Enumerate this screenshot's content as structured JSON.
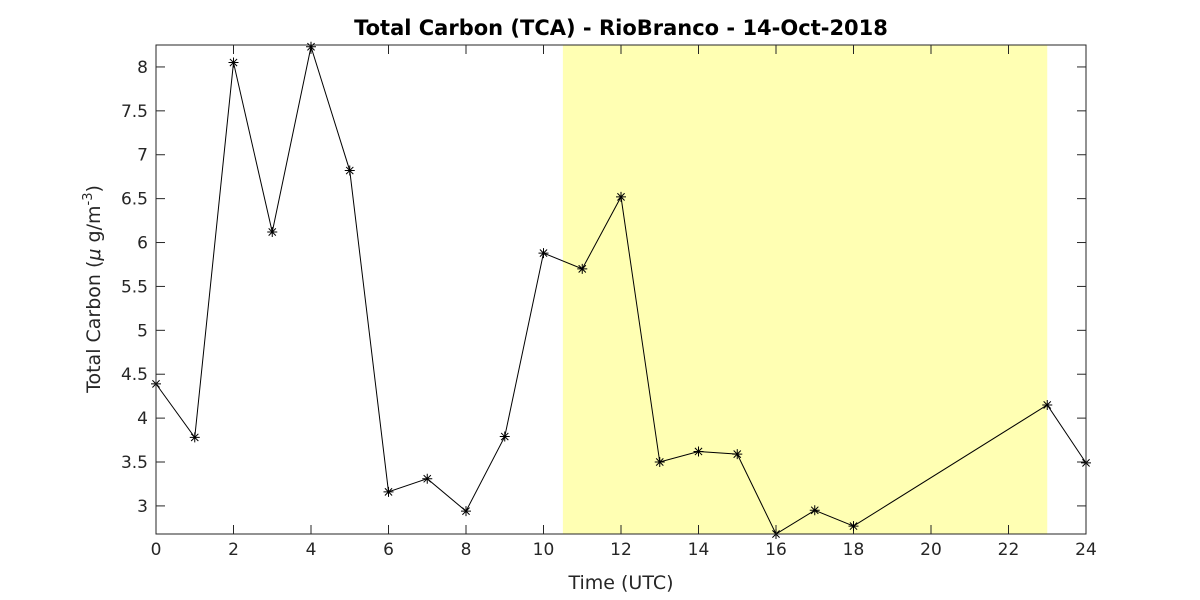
{
  "chart_data": {
    "type": "line",
    "title": "Total Carbon (TCA) - RioBranco - 14-Oct-2018",
    "xlabel": "Time (UTC)",
    "ylabel_prefix": "Total Carbon (",
    "ylabel_mu": "μ",
    "ylabel_unit": " g/m",
    "ylabel_exp": "-3",
    "ylabel_suffix": ")",
    "xlim": [
      0,
      24
    ],
    "ylim": [
      2.68,
      8.25
    ],
    "xticks": [
      0,
      2,
      4,
      6,
      8,
      10,
      12,
      14,
      16,
      18,
      20,
      22,
      24
    ],
    "yticks": [
      3,
      3.5,
      4,
      4.5,
      5,
      5.5,
      6,
      6.5,
      7,
      7.5,
      8
    ],
    "ytick_labels": [
      "3",
      "3.5",
      "4",
      "4.5",
      "5",
      "5.5",
      "6",
      "6.5",
      "7",
      "7.5",
      "8"
    ],
    "xtick_labels": [
      "0",
      "2",
      "4",
      "6",
      "8",
      "10",
      "12",
      "14",
      "16",
      "18",
      "20",
      "22",
      "24"
    ],
    "highlight_span": {
      "x_start": 10.5,
      "x_end": 23,
      "color": "#ffffb3"
    },
    "grid": false,
    "marker": "asterisk",
    "line_color": "#000000",
    "series": [
      {
        "x": [
          0,
          1,
          2,
          3,
          4,
          5,
          6,
          7,
          8,
          9,
          10,
          11,
          12,
          13,
          14,
          15,
          16,
          17,
          18,
          23,
          24
        ],
        "values": [
          4.39,
          3.78,
          8.05,
          6.12,
          8.23,
          6.82,
          3.16,
          3.31,
          2.94,
          3.79,
          5.88,
          5.7,
          6.52,
          3.5,
          3.62,
          3.59,
          2.68,
          2.95,
          2.77,
          4.15,
          3.49
        ]
      }
    ]
  }
}
